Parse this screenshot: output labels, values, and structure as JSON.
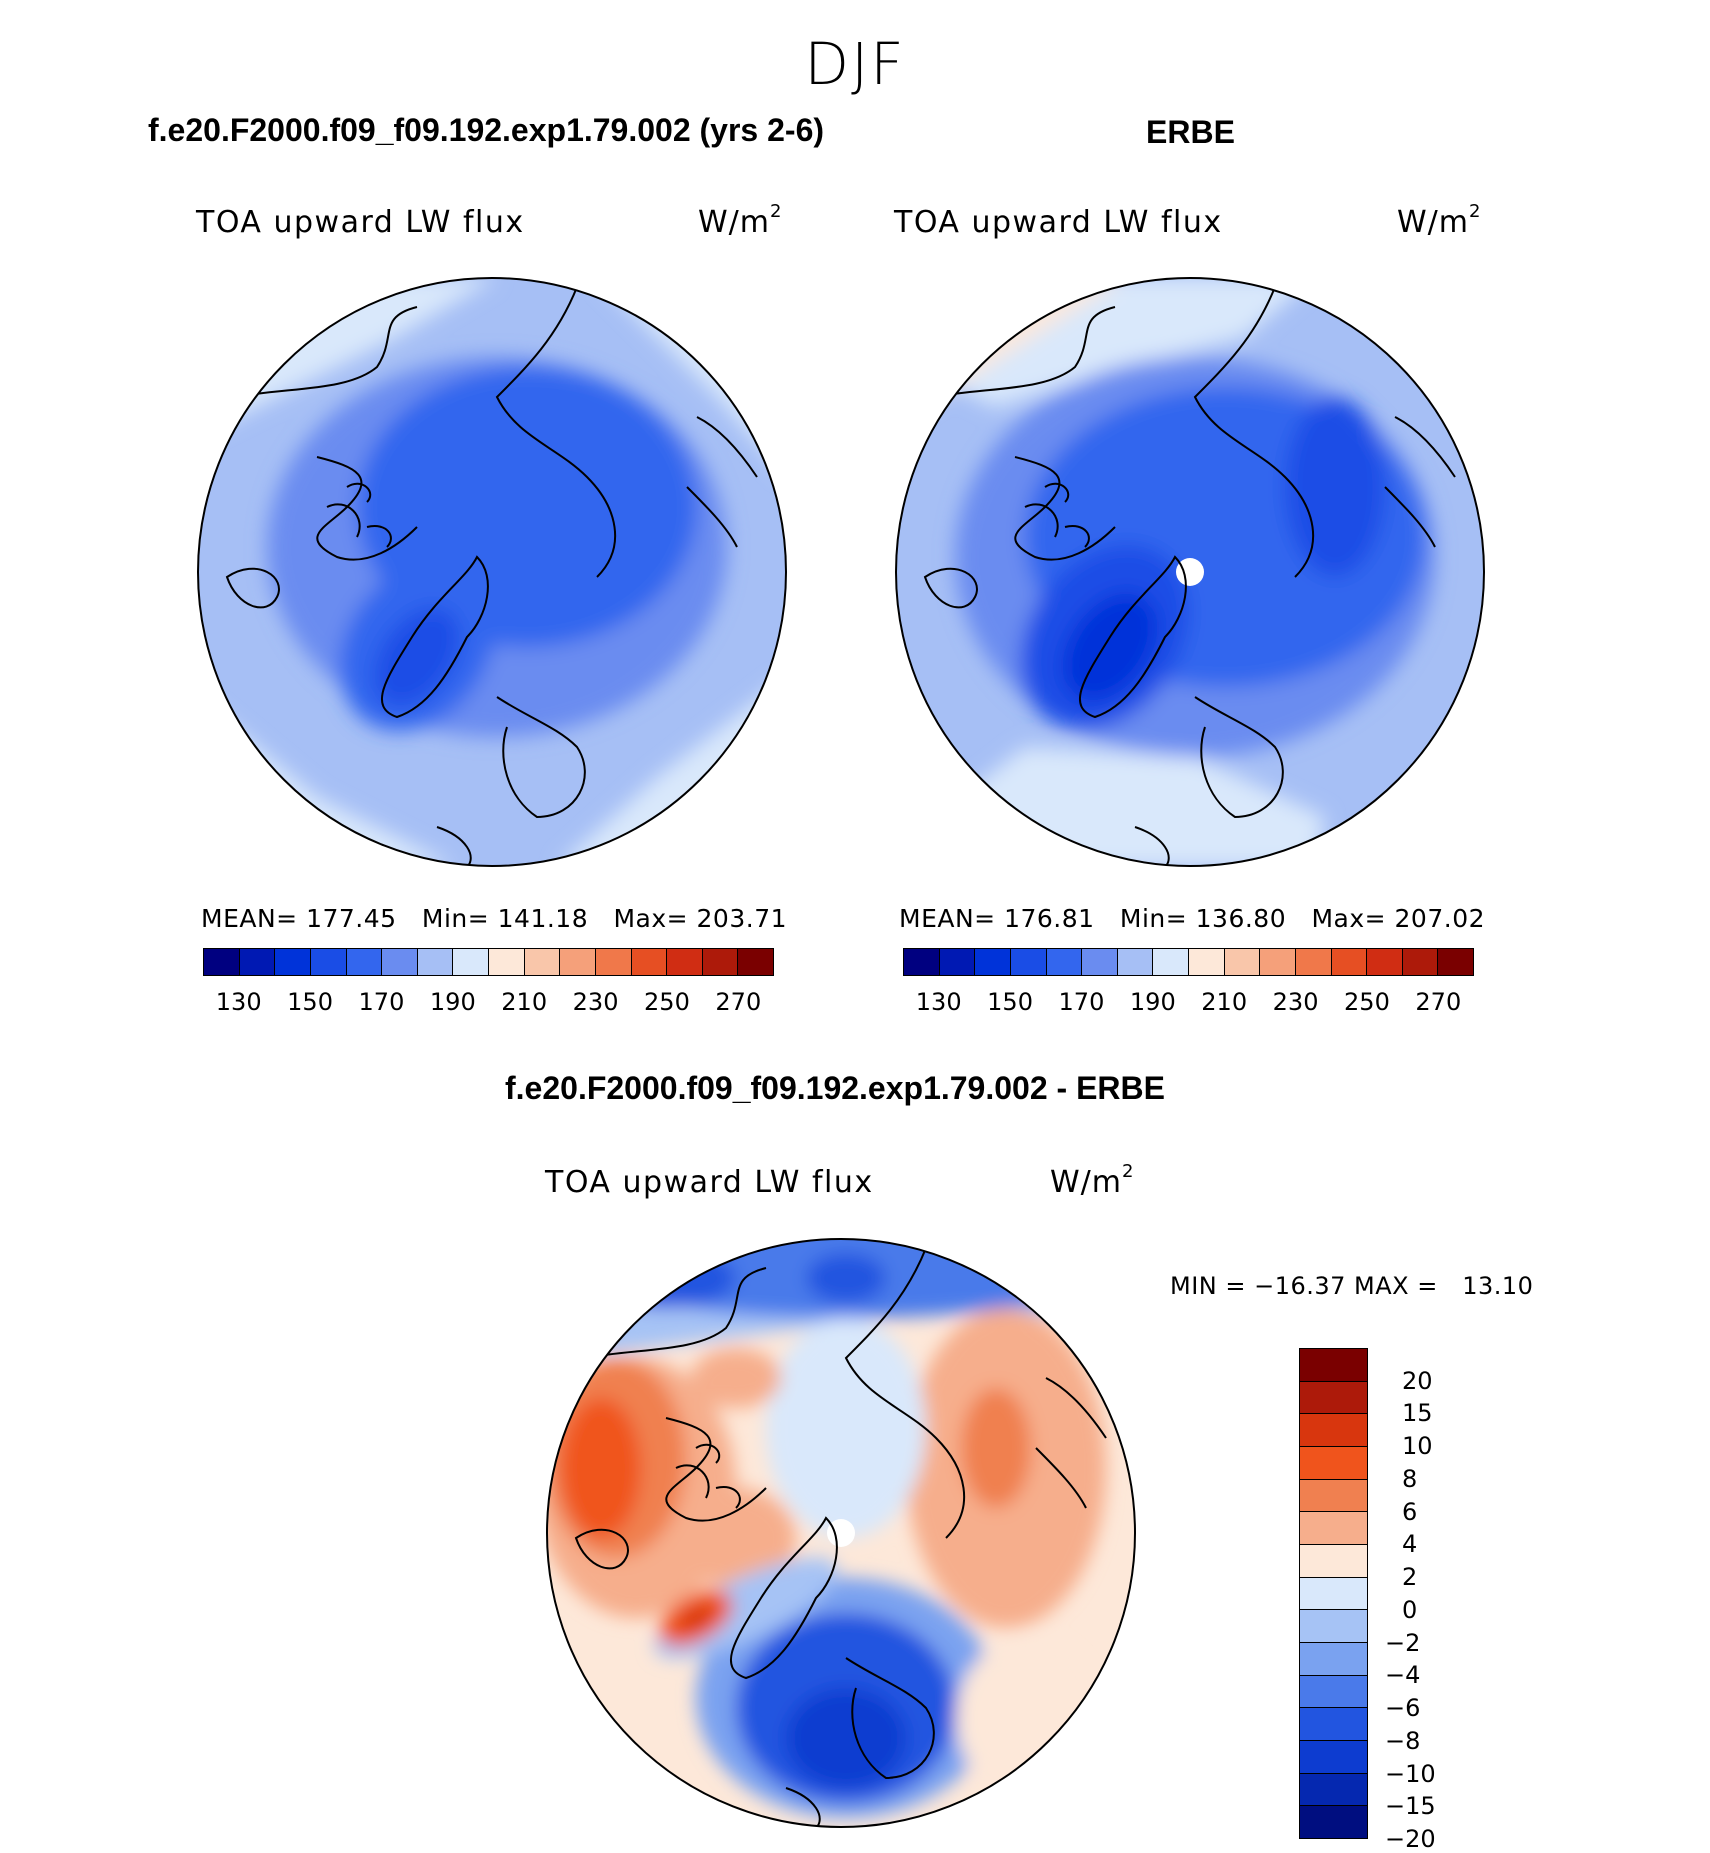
{
  "title": "DJF",
  "palettes": {
    "absolute": [
      "#000080",
      "#0019b3",
      "#0033d9",
      "#1a4de6",
      "#3366ee",
      "#6a8cf0",
      "#a6bff5",
      "#d9e8fb",
      "#fde8d9",
      "#f9c6aa",
      "#f5a07a",
      "#f0784a",
      "#e64f23",
      "#d02d13",
      "#ad1a0a",
      "#7a0000"
    ],
    "difference": [
      "#7a0000",
      "#ad1a0a",
      "#d8360e",
      "#f0541c",
      "#f08050",
      "#f6ae8c",
      "#fde8d9",
      "#d9e8fb",
      "#a6c3f5",
      "#7aa2f0",
      "#4a7aea",
      "#2255e0",
      "#0d3cd0",
      "#0528b0",
      "#000e80"
    ]
  },
  "panels": {
    "model": {
      "case_title": "f.e20.F2000.f09_f09.192.exp1.79.002 (yrs 2-6)",
      "variable": "TOA upward LW flux",
      "units_base": "W/m",
      "units_exp": "2",
      "stats_text": "MEAN= 177.45   Min= 141.18   Max= 203.71"
    },
    "obs": {
      "case_title": "ERBE",
      "variable": "TOA upward LW flux",
      "units_base": "W/m",
      "units_exp": "2",
      "stats_text": "MEAN= 176.81   Min= 136.80   Max= 207.02"
    },
    "diff": {
      "case_title": "f.e20.F2000.f09_f09.192.exp1.79.002 - ERBE",
      "variable": "TOA upward LW flux",
      "units_base": "W/m",
      "units_exp": "2",
      "stats_text": "MIN = −16.37 MAX =   13.10"
    }
  },
  "chart_data": [
    {
      "type": "heatmap",
      "projection": "north polar stereographic",
      "title": "f.e20.F2000.f09_f09.192.exp1.79.002 (yrs 2-6)",
      "subtitle": "TOA upward LW flux",
      "units": "W/m2",
      "season": "DJF",
      "stats": {
        "mean": 177.45,
        "min": 141.18,
        "max": 203.71
      },
      "contour_levels": [
        130,
        140,
        150,
        160,
        170,
        180,
        190,
        200,
        210,
        220,
        230,
        240,
        250,
        260,
        270
      ],
      "colorbar_tick_labels": [
        "130",
        "150",
        "170",
        "190",
        "210",
        "230",
        "250",
        "270"
      ]
    },
    {
      "type": "heatmap",
      "projection": "north polar stereographic",
      "title": "ERBE",
      "subtitle": "TOA upward LW flux",
      "units": "W/m2",
      "season": "DJF",
      "stats": {
        "mean": 176.81,
        "min": 136.8,
        "max": 207.02
      },
      "contour_levels": [
        130,
        140,
        150,
        160,
        170,
        180,
        190,
        200,
        210,
        220,
        230,
        240,
        250,
        260,
        270
      ],
      "colorbar_tick_labels": [
        "130",
        "150",
        "170",
        "190",
        "210",
        "230",
        "250",
        "270"
      ]
    },
    {
      "type": "heatmap",
      "projection": "north polar stereographic",
      "title": "f.e20.F2000.f09_f09.192.exp1.79.002 - ERBE",
      "subtitle": "TOA upward LW flux",
      "units": "W/m2",
      "season": "DJF",
      "stats": {
        "min": -16.37,
        "max": 13.1
      },
      "contour_levels": [
        20,
        15,
        10,
        8,
        6,
        4,
        2,
        0,
        -2,
        -4,
        -6,
        -8,
        -10,
        -15,
        -20
      ],
      "colorbar_tick_labels": [
        "20",
        "15",
        "10",
        "8",
        "6",
        "4",
        "2",
        "0",
        "−2",
        "−4",
        "−6",
        "−8",
        "−10",
        "−15",
        "−20"
      ]
    }
  ]
}
